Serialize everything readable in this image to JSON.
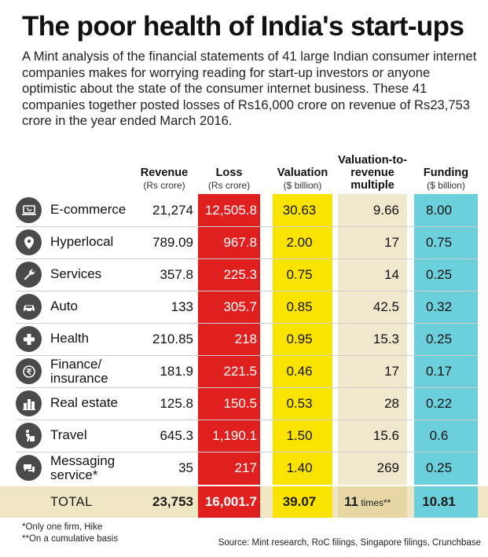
{
  "title": "The poor health of India's start-ups",
  "intro": "A Mint analysis of the financial statements of 41 large Indian consumer internet companies makes for worrying reading for start-up investors or anyone optimistic about the state of the consumer internet business. These 41 companies together posted losses of Rs16,000 crore on revenue of Rs23,753 crore in the year ended March 2016.",
  "headers": {
    "revenue": "Revenue",
    "revenue_unit": "(Rs crore)",
    "loss": "Loss",
    "loss_unit": "(Rs crore)",
    "valuation": "Valuation",
    "valuation_unit": "($ billion)",
    "multiple_l1": "Valuation-to-",
    "multiple_l2": "revenue",
    "multiple_l3": "multiple",
    "funding": "Funding",
    "funding_unit": "($ billion)"
  },
  "colors": {
    "loss": "#e0201f",
    "valuation": "#fbe300",
    "multiple": "#f0e8cc",
    "funding": "#6ccfdc",
    "icon": "#4a4a4a"
  },
  "chart_data": {
    "type": "table",
    "columns": [
      "Revenue",
      "Loss",
      "Valuation",
      "Valuation-to-revenue multiple",
      "Funding"
    ],
    "units": [
      "(Rs crore)",
      "(Rs crore)",
      "($ billion)",
      "",
      "($ billion)"
    ],
    "rows": [
      {
        "category": "E-commerce",
        "category_l2": "",
        "icon": "laptop-cart-icon",
        "revenue": "21,274",
        "loss": "12,505.8",
        "valuation": "30.63",
        "multiple": "9.66",
        "funding": "8.00"
      },
      {
        "category": "Hyperlocal",
        "category_l2": "",
        "icon": "location-pin-icon",
        "revenue": "789.09",
        "loss": "967.8",
        "valuation": "2.00",
        "multiple": "17",
        "funding": "0.75"
      },
      {
        "category": "Services",
        "category_l2": "",
        "icon": "wrench-icon",
        "revenue": "357.8",
        "loss": "225.3",
        "valuation": "0.75",
        "multiple": "14",
        "funding": "0.25"
      },
      {
        "category": "Auto",
        "category_l2": "",
        "icon": "car-icon",
        "revenue": "133",
        "loss": "305.7",
        "valuation": "0.85",
        "multiple": "42.5",
        "funding": "0.32"
      },
      {
        "category": "Health",
        "category_l2": "",
        "icon": "medical-cross-icon",
        "revenue": "210.85",
        "loss": "218",
        "valuation": "0.95",
        "multiple": "15.3",
        "funding": "0.25"
      },
      {
        "category": "Finance/",
        "category_l2": "insurance",
        "icon": "rupee-bag-icon",
        "revenue": "181.9",
        "loss": "221.5",
        "valuation": "0.46",
        "multiple": "17",
        "funding": "0.17"
      },
      {
        "category": "Real estate",
        "category_l2": "",
        "icon": "buildings-icon",
        "revenue": "125.8",
        "loss": "150.5",
        "valuation": "0.53",
        "multiple": "28",
        "funding": "0.22"
      },
      {
        "category": "Travel",
        "category_l2": "",
        "icon": "traveller-icon",
        "revenue": "645.3",
        "loss": "1,190.1",
        "valuation": "1.50",
        "multiple": "15.6",
        "funding": "0.6"
      },
      {
        "category": "Messaging",
        "category_l2": "service*",
        "icon": "chat-bubbles-icon",
        "revenue": "35",
        "loss": "217",
        "valuation": "1.40",
        "multiple": "269",
        "funding": "0.25"
      }
    ],
    "total": {
      "label": "TOTAL",
      "revenue": "23,753",
      "loss": "16,001.7",
      "valuation": "39.07",
      "multiple": "11",
      "multiple_suffix": " times**",
      "funding": "10.81"
    }
  },
  "footnotes": {
    "note1": "*Only one firm, Hike",
    "note2": "**On a cumulative basis",
    "source": "Source: Mint research, RoC filings, Singapore filings, Crunchbase"
  }
}
